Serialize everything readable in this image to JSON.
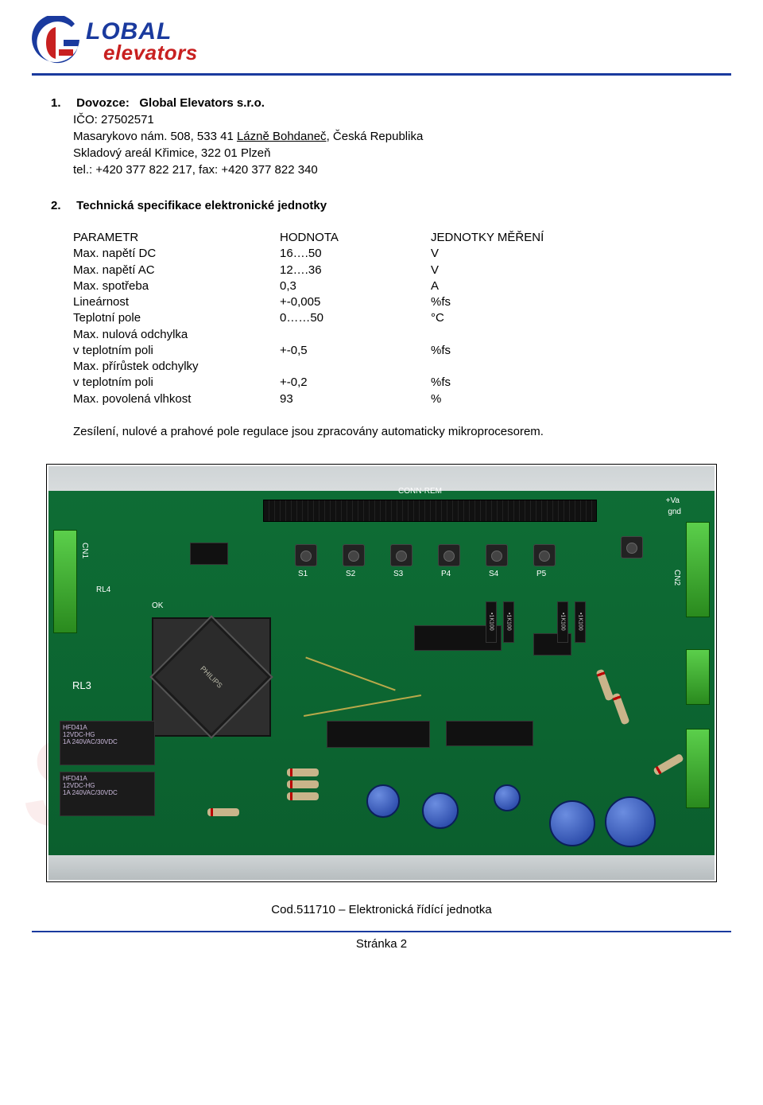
{
  "brand": {
    "top": "LOBAL",
    "bottom": "elevators"
  },
  "section1": {
    "num": "1.",
    "label": "Dovozce:",
    "company": "Global Elevators s.r.o.",
    "ico_label": "IČO:",
    "ico": "27502571",
    "addr1_prefix": "Masarykovo nám. 508, 533 41 ",
    "addr1_link": "Lázně Bohdaneč",
    "addr1_suffix": ", Česká Republika",
    "addr2": "Skladový areál Křimice, 322 01 Plzeň",
    "phone": "tel.: +420 377 822 217, fax: +420 377 822 340"
  },
  "section2": {
    "num": "2.",
    "title": "Technická specifikace elektronické jednotky",
    "headers": {
      "p": "PARAMETR",
      "v": "HODNOTA",
      "u": "JEDNOTKY MĚŘENÍ"
    },
    "rows": [
      {
        "p": "Max. napětí DC",
        "v": "16….50",
        "u": "V"
      },
      {
        "p": "Max. napětí AC",
        "v": "12….36",
        "u": "V"
      },
      {
        "p": "Max. spotřeba",
        "v": "0,3",
        "u": "A"
      },
      {
        "p": "Lineárnost",
        "v": "+-0,005",
        "u": "%fs"
      },
      {
        "p": "Teplotní pole",
        "v": "0……50",
        "u": "°C"
      },
      {
        "p": "Max. nulová odchylka",
        "v": "",
        "u": ""
      },
      {
        "p": "v teplotním poli",
        "v": "+-0,5",
        "u": "%fs"
      },
      {
        "p": "Max. přírůstek odchylky",
        "v": "",
        "u": ""
      },
      {
        "p": "v teplotním poli",
        "v": "+-0,2",
        "u": "%fs"
      },
      {
        "p": "Max. povolená vlhkost",
        "v": "93",
        "u": "%"
      }
    ],
    "afterpara": "Zesílení, nulové a prahové pole regulace jsou zpracovány automaticky mikroprocesorem."
  },
  "pcb": {
    "labels": {
      "conn_rem": "CONN-REM",
      "plcc_text": "PHILIPS",
      "relay_text": "HFD41A\n12VDC-HG\n1A 240VAC/30VDC",
      "res_array": "•1K100",
      "rl3": "RL3",
      "rl4": "RL4",
      "ok": "OK",
      "va": "+Va",
      "gnd": "gnd",
      "s1": "S1",
      "s2": "S2",
      "s3": "S3",
      "p4": "P4",
      "s4": "S4",
      "p5": "P5",
      "cn1": "CN1",
      "cn2": "CN2"
    }
  },
  "footer": {
    "line1": "Cod.511710 – Elektronická řídící jednotka",
    "line2": "Stránka 2"
  },
  "colors": {
    "blue": "#1a3a9e",
    "red": "#c82020",
    "pcb_green": "#0b5f2e"
  }
}
